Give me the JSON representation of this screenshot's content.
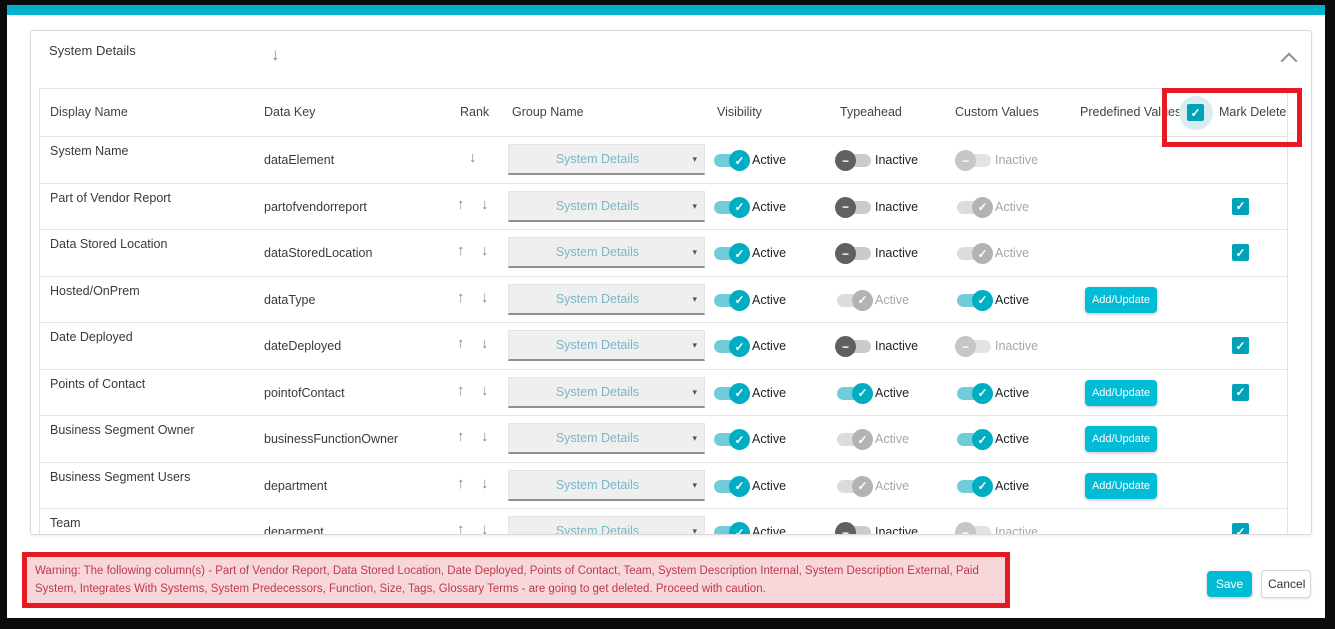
{
  "panel": {
    "title": "System Details",
    "title_arrow_icon": "arrow-down",
    "collapse_icon": "chevron-up"
  },
  "table": {
    "headers": [
      "Display Name",
      "Data Key",
      "Rank",
      "Group Name",
      "Visibility",
      "Typeahead",
      "Custom Values",
      "Predefined Values",
      "Mark Delete"
    ],
    "header_mark_delete_checked": true,
    "add_update_label": "Add/Update",
    "rows": [
      {
        "display_name": "System Name",
        "data_key": "dataElement",
        "rank_up": false,
        "rank_down": true,
        "group": "System Details",
        "visibility": {
          "state": "active",
          "enabled": true,
          "label": "Active"
        },
        "typeahead": {
          "state": "inactive",
          "enabled": true,
          "label": "Inactive"
        },
        "custom_values": {
          "state": "inactive",
          "enabled": false,
          "label": "Inactive"
        },
        "predefined_values_button": false,
        "mark_delete": null
      },
      {
        "display_name": "Part of Vendor Report",
        "data_key": "partofvendorreport",
        "rank_up": true,
        "rank_down": true,
        "group": "System Details",
        "visibility": {
          "state": "active",
          "enabled": true,
          "label": "Active"
        },
        "typeahead": {
          "state": "inactive",
          "enabled": true,
          "label": "Inactive"
        },
        "custom_values": {
          "state": "active",
          "enabled": false,
          "label": "Active"
        },
        "predefined_values_button": false,
        "mark_delete": true
      },
      {
        "display_name": "Data Stored Location",
        "data_key": "dataStoredLocation",
        "rank_up": true,
        "rank_down": true,
        "group": "System Details",
        "visibility": {
          "state": "active",
          "enabled": true,
          "label": "Active"
        },
        "typeahead": {
          "state": "inactive",
          "enabled": true,
          "label": "Inactive"
        },
        "custom_values": {
          "state": "active",
          "enabled": false,
          "label": "Active"
        },
        "predefined_values_button": false,
        "mark_delete": true
      },
      {
        "display_name": "Hosted/OnPrem",
        "data_key": "dataType",
        "rank_up": true,
        "rank_down": true,
        "group": "System Details",
        "visibility": {
          "state": "active",
          "enabled": true,
          "label": "Active"
        },
        "typeahead": {
          "state": "active",
          "enabled": false,
          "label": "Active"
        },
        "custom_values": {
          "state": "active",
          "enabled": true,
          "label": "Active"
        },
        "predefined_values_button": true,
        "mark_delete": null
      },
      {
        "display_name": "Date Deployed",
        "data_key": "dateDeployed",
        "rank_up": true,
        "rank_down": true,
        "group": "System Details",
        "visibility": {
          "state": "active",
          "enabled": true,
          "label": "Active"
        },
        "typeahead": {
          "state": "inactive",
          "enabled": true,
          "label": "Inactive"
        },
        "custom_values": {
          "state": "inactive",
          "enabled": false,
          "label": "Inactive"
        },
        "predefined_values_button": false,
        "mark_delete": true
      },
      {
        "display_name": "Points of Contact",
        "data_key": "pointofContact",
        "rank_up": true,
        "rank_down": true,
        "group": "System Details",
        "visibility": {
          "state": "active",
          "enabled": true,
          "label": "Active"
        },
        "typeahead": {
          "state": "active",
          "enabled": true,
          "label": "Active"
        },
        "custom_values": {
          "state": "active",
          "enabled": true,
          "label": "Active"
        },
        "predefined_values_button": true,
        "mark_delete": true
      },
      {
        "display_name": "Business Segment Owner",
        "data_key": "businessFunctionOwner",
        "rank_up": true,
        "rank_down": true,
        "group": "System Details",
        "visibility": {
          "state": "active",
          "enabled": true,
          "label": "Active"
        },
        "typeahead": {
          "state": "active",
          "enabled": false,
          "label": "Active"
        },
        "custom_values": {
          "state": "active",
          "enabled": true,
          "label": "Active"
        },
        "predefined_values_button": true,
        "mark_delete": null
      },
      {
        "display_name": "Business Segment Users",
        "data_key": "department",
        "rank_up": true,
        "rank_down": true,
        "group": "System Details",
        "visibility": {
          "state": "active",
          "enabled": true,
          "label": "Active"
        },
        "typeahead": {
          "state": "active",
          "enabled": false,
          "label": "Active"
        },
        "custom_values": {
          "state": "active",
          "enabled": true,
          "label": "Active"
        },
        "predefined_values_button": true,
        "mark_delete": null
      },
      {
        "display_name": "Team",
        "data_key": "deparment",
        "rank_up": true,
        "rank_down": true,
        "group": "System Details",
        "visibility": {
          "state": "active",
          "enabled": true,
          "label": "Active"
        },
        "typeahead": {
          "state": "inactive",
          "enabled": true,
          "label": "Inactive"
        },
        "custom_values": {
          "state": "inactive",
          "enabled": false,
          "label": "Inactive"
        },
        "predefined_values_button": false,
        "mark_delete": true
      }
    ]
  },
  "warning": {
    "text": "Warning: The following column(s) - Part of Vendor Report, Data Stored Location, Date Deployed, Points of Contact, Team, System Description Internal, System Description External, Paid System, Integrates With Systems, System Predecessors, Function, Size, Tags, Glossary Terms - are going to get deleted. Proceed with caution."
  },
  "footer": {
    "save_label": "Save",
    "cancel_label": "Cancel"
  },
  "colors": {
    "accent_teal": "#00b2c9",
    "button_cyan": "#00bcd4",
    "annotation_red": "#e41b23",
    "warning_bg": "#f8d7da",
    "warning_text": "#c0394b"
  }
}
